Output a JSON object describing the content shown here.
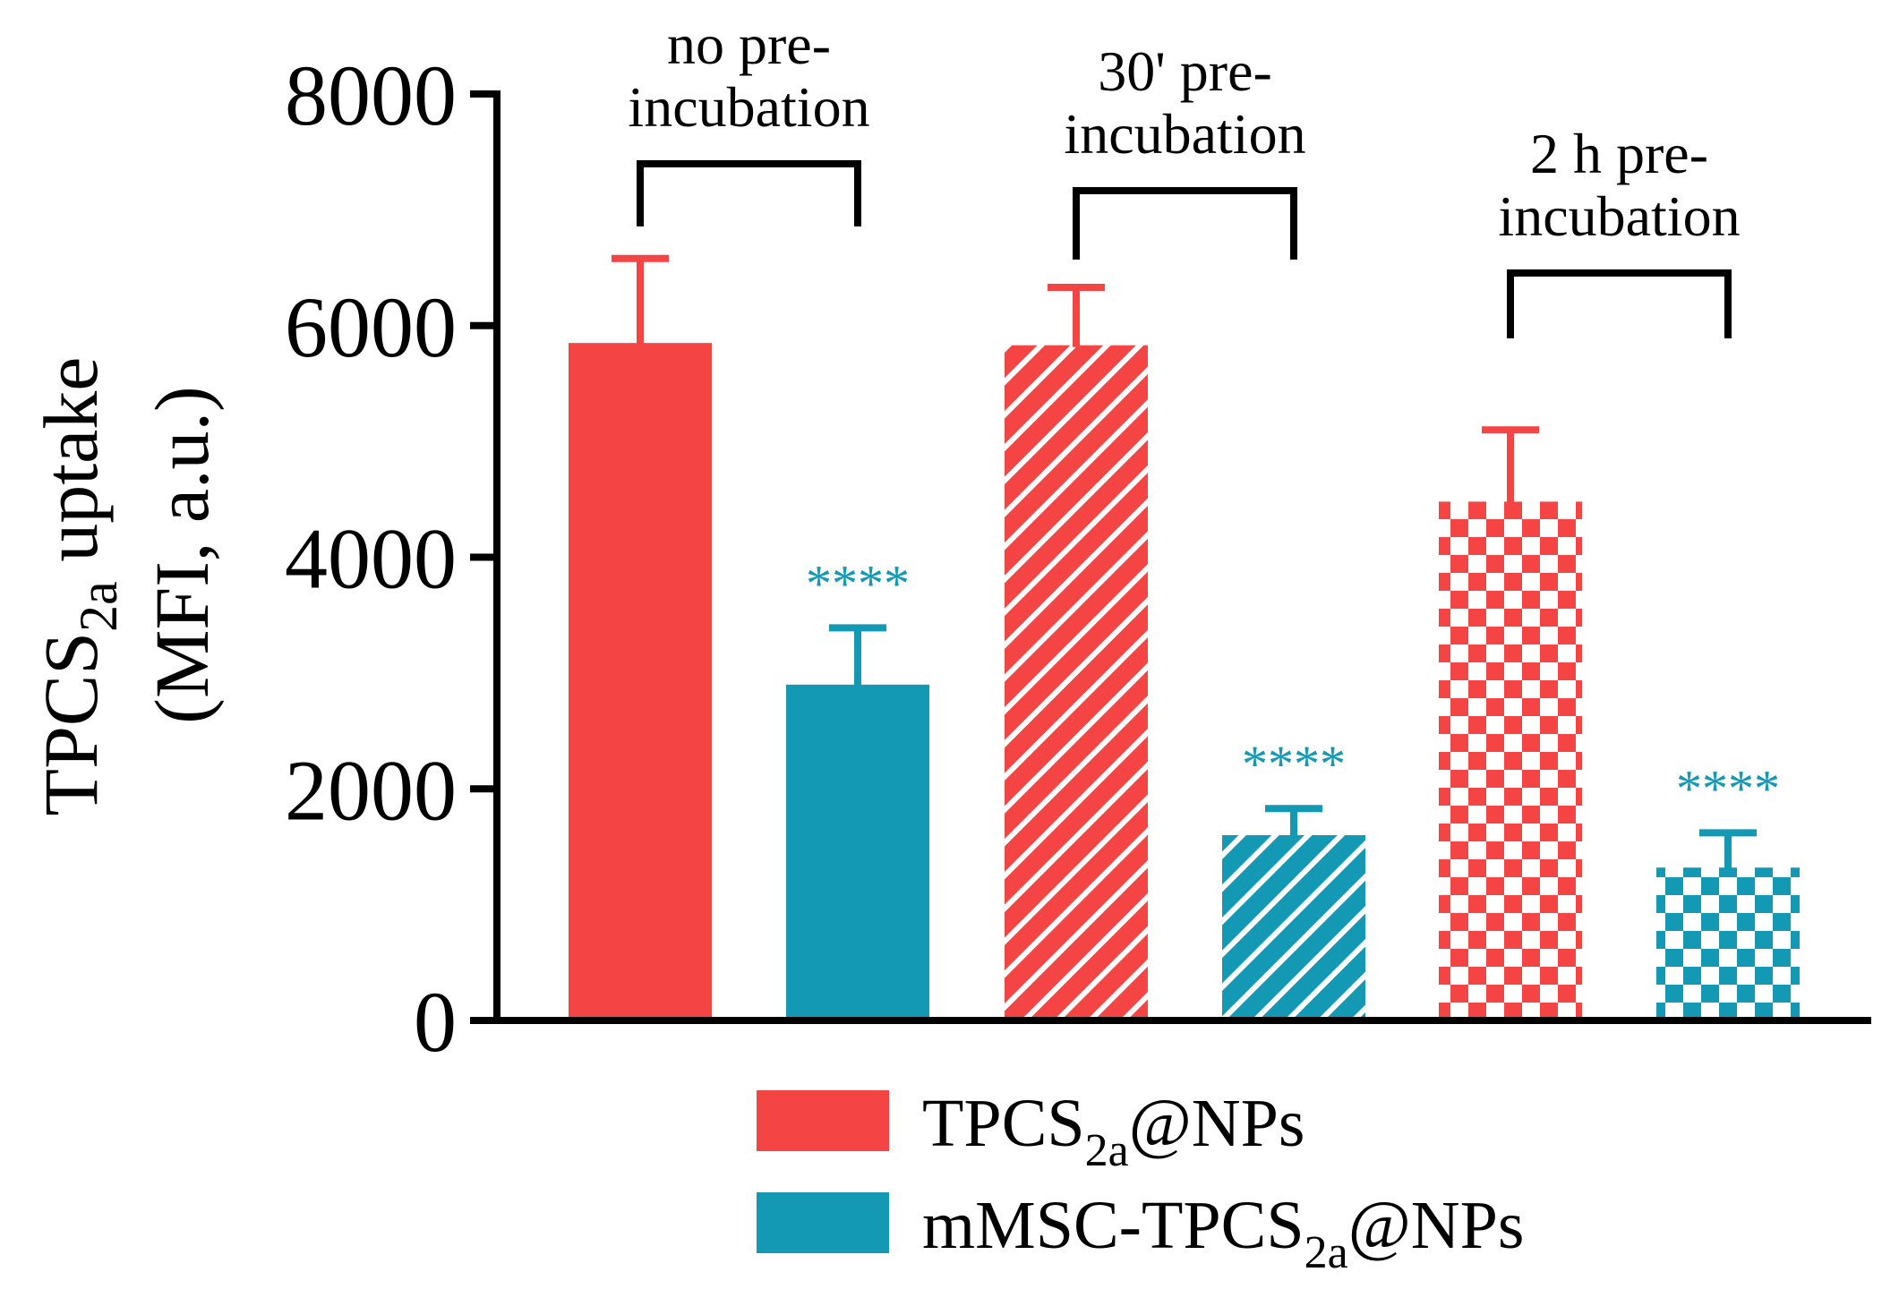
{
  "chart_data": {
    "type": "bar",
    "title": "",
    "xlabel": "",
    "ylabel": "TPCS_2a uptake (MFI, a.u.)",
    "ylabel_parts": {
      "line1_main": "TPCS",
      "line1_sub": "2a",
      "line1_rest": " uptake",
      "line2": "(MFI, a.u.)"
    },
    "ylim": [
      0,
      8000
    ],
    "yticks": [
      "0",
      "2000",
      "4000",
      "6000",
      "8000"
    ],
    "groups": [
      {
        "label_line1": "no pre-",
        "label_line2": "incubation",
        "pattern": "solid"
      },
      {
        "label_line1": "30' pre-",
        "label_line2": "incubation",
        "pattern": "diagonal-stripes"
      },
      {
        "label_line1": "2 h pre-",
        "label_line2": "incubation",
        "pattern": "checkerboard"
      }
    ],
    "series": [
      {
        "name": "TPCS2a@NPs",
        "color": "#f54444",
        "values": [
          5850,
          5830,
          4480
        ],
        "errors": [
          730,
          500,
          620
        ]
      },
      {
        "name": "mMSC-TPCS2a@NPs",
        "color": "#1499b4",
        "values": [
          2900,
          1600,
          1320
        ],
        "errors": [
          490,
          230,
          300
        ]
      }
    ],
    "significance": [
      "****",
      "****",
      "****"
    ],
    "legend": {
      "position": "bottom",
      "entries": [
        {
          "main": "TPCS",
          "sub": "2a",
          "rest": "@NPs",
          "color": "#f54444"
        },
        {
          "prefix": "mMSC-",
          "main": "TPCS",
          "sub": "2a",
          "rest": "@NPs",
          "color": "#1499b4"
        }
      ]
    }
  }
}
